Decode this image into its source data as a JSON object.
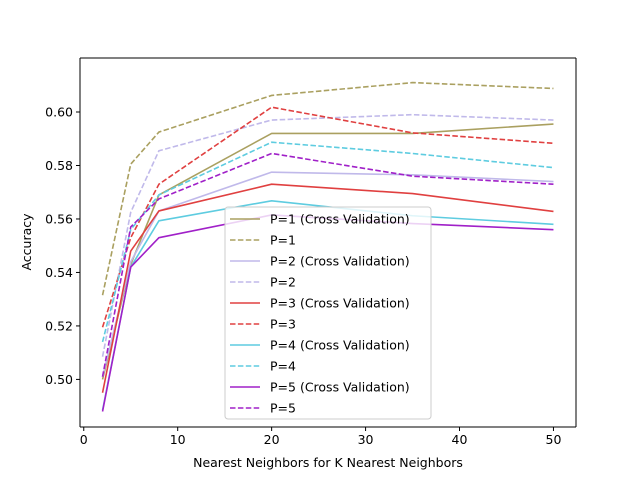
{
  "chart_data": {
    "type": "line",
    "xlabel": "Nearest Neighbors for K Nearest Neighbors",
    "ylabel": "Accuracy",
    "xlim": [
      -0.4,
      52.4
    ],
    "ylim": [
      0.4822,
      0.6202
    ],
    "xticks": [
      0,
      10,
      20,
      30,
      40,
      50
    ],
    "yticks": [
      0.5,
      0.52,
      0.54,
      0.56,
      0.58,
      0.6
    ],
    "ytick_labels": [
      "0.50",
      "0.52",
      "0.54",
      "0.56",
      "0.58",
      "0.60"
    ],
    "grid": false,
    "legend_position": "lower center",
    "x": [
      2,
      5,
      8,
      20,
      35,
      50
    ],
    "series": [
      {
        "name": "P=1 (Cross Validation)",
        "color": "#aaa060",
        "dash": "solid",
        "values": [
          0.5,
          0.543,
          0.569,
          0.592,
          0.592,
          0.5955
        ]
      },
      {
        "name": "P=1",
        "color": "#aaa060",
        "dash": "dashed",
        "values": [
          0.5315,
          0.5805,
          0.5925,
          0.6062,
          0.611,
          0.6088
        ]
      },
      {
        "name": "P=2 (Cross Validation)",
        "color": "#c0b9ea",
        "dash": "solid",
        "values": [
          0.501,
          0.544,
          0.563,
          0.5775,
          0.5765,
          0.574
        ]
      },
      {
        "name": "P=2",
        "color": "#c0b9ea",
        "dash": "dashed",
        "values": [
          0.5085,
          0.5625,
          0.5855,
          0.597,
          0.599,
          0.597
        ]
      },
      {
        "name": "P=3 (Cross Validation)",
        "color": "#e04040",
        "dash": "solid",
        "values": [
          0.495,
          0.548,
          0.563,
          0.573,
          0.5695,
          0.5628
        ]
      },
      {
        "name": "P=3",
        "color": "#e04040",
        "dash": "dashed",
        "values": [
          0.5195,
          0.553,
          0.573,
          0.6018,
          0.5922,
          0.5883
        ]
      },
      {
        "name": "P=4 (Cross Validation)",
        "color": "#5ecce0",
        "dash": "solid",
        "values": [
          0.4885,
          0.542,
          0.5593,
          0.5668,
          0.5612,
          0.558
        ]
      },
      {
        "name": "P=4",
        "color": "#5ecce0",
        "dash": "dashed",
        "values": [
          0.514,
          0.556,
          0.569,
          0.5887,
          0.5845,
          0.5792
        ]
      },
      {
        "name": "P=5 (Cross Validation)",
        "color": "#a020c8",
        "dash": "solid",
        "values": [
          0.488,
          0.542,
          0.553,
          0.5615,
          0.5583,
          0.556
        ]
      },
      {
        "name": "P=5",
        "color": "#a020c8",
        "dash": "dashed",
        "values": [
          0.501,
          0.557,
          0.5675,
          0.5845,
          0.576,
          0.573
        ]
      }
    ]
  }
}
